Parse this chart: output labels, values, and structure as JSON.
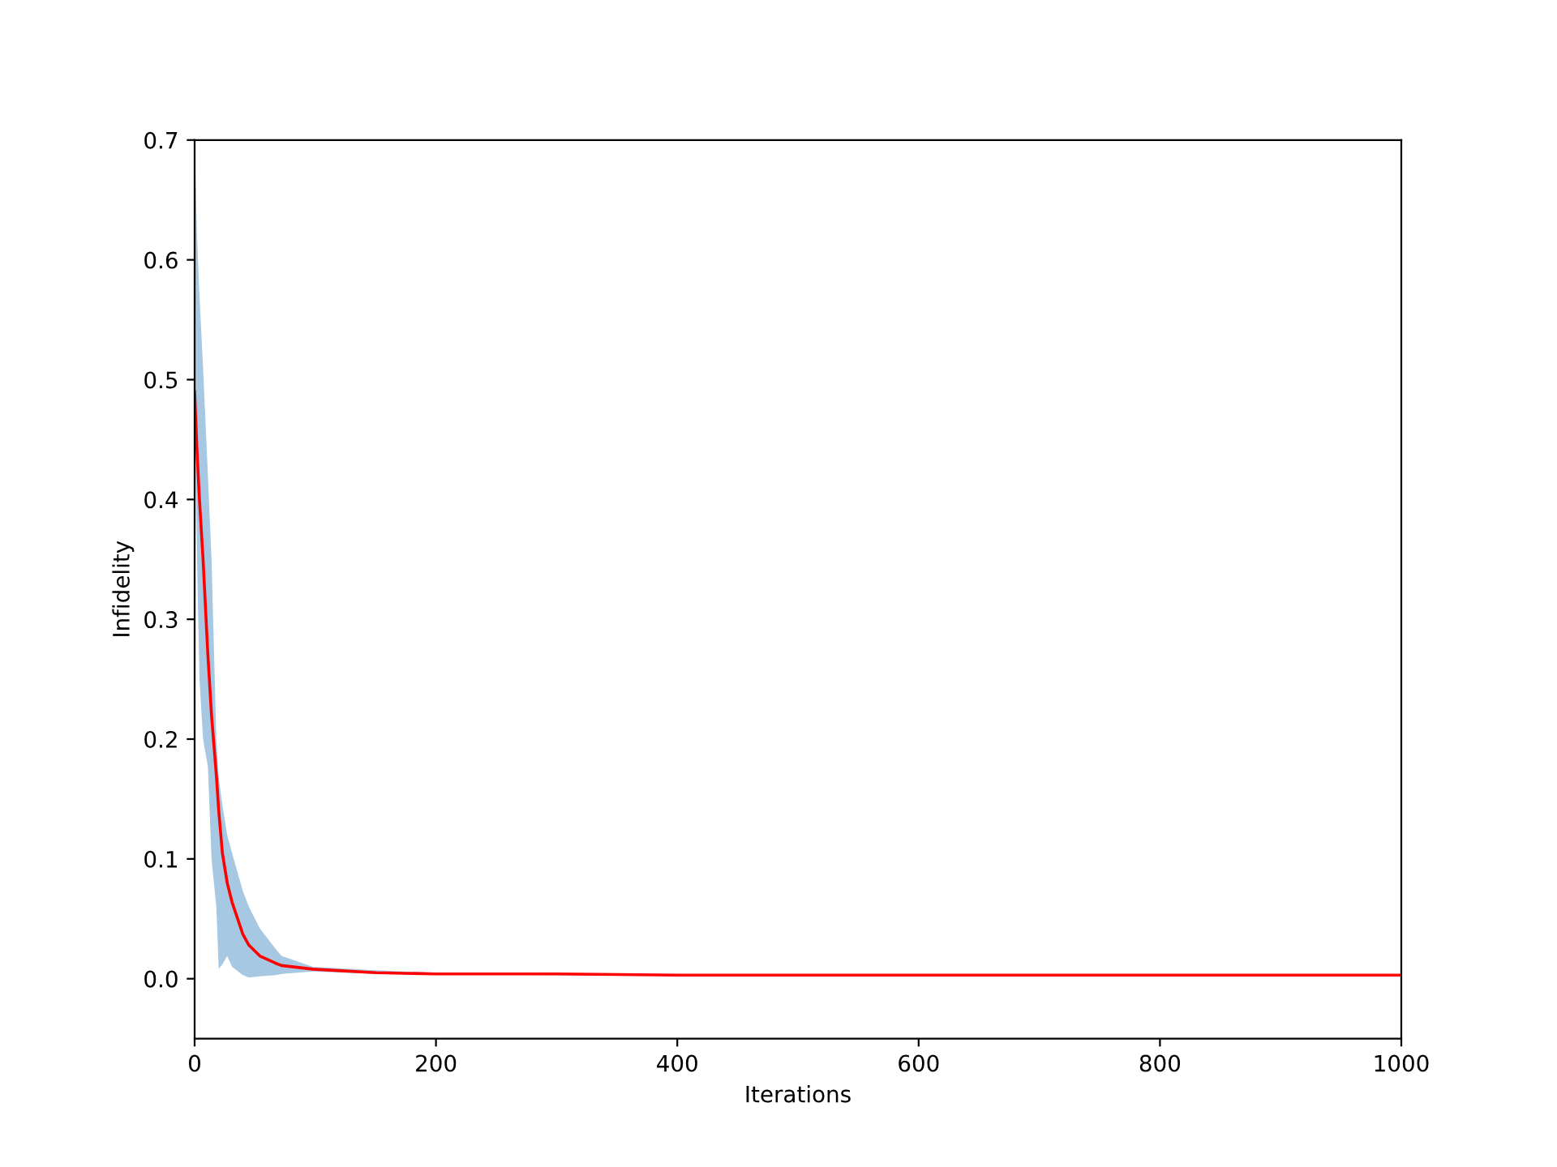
{
  "chart_data": {
    "type": "line",
    "xlabel": "Iterations",
    "ylabel": "Infidelity",
    "xlim": [
      0,
      1000
    ],
    "ylim": [
      -0.05,
      0.7
    ],
    "xticks": [
      0,
      200,
      400,
      600,
      800,
      1000
    ],
    "yticks": [
      {
        "value": 0,
        "label": "0.0"
      },
      0.1,
      0.2,
      0.3,
      0.4,
      0.5,
      0.6,
      0.7
    ],
    "grid": false,
    "legend": false,
    "marker": "none",
    "line_style": "solid",
    "series": [
      {
        "color": "#ff0000",
        "x": [
          0,
          2,
          4,
          7,
          11,
          14,
          18,
          20,
          23,
          27,
          31,
          40,
          45,
          54,
          67,
          72,
          98,
          150,
          200,
          300,
          400,
          500,
          600,
          700,
          800,
          900,
          1000
        ],
        "values": [
          0.49,
          0.44,
          0.4,
          0.35,
          0.27,
          0.22,
          0.17,
          0.14,
          0.105,
          0.08,
          0.064,
          0.037,
          0.028,
          0.019,
          0.013,
          0.011,
          0.008,
          0.005,
          0.004,
          0.004,
          0.003,
          0.003,
          0.003,
          0.003,
          0.003,
          0.003,
          0.003
        ],
        "lower": [
          0.49,
          0.35,
          0.25,
          0.2,
          0.177,
          0.1,
          0.06,
          0.008,
          0.012,
          0.019,
          0.01,
          0.003,
          0.001,
          0.002,
          0.003,
          0.004,
          0.006,
          0.004,
          0.0035,
          0.003,
          0.0027,
          0.0027,
          0.0027,
          0.0027,
          0.0027,
          0.0027,
          0.0027
        ],
        "upper": [
          0.7,
          0.62,
          0.57,
          0.51,
          0.42,
          0.35,
          0.2,
          0.168,
          0.145,
          0.12,
          0.105,
          0.073,
          0.06,
          0.042,
          0.025,
          0.019,
          0.01,
          0.007,
          0.005,
          0.004,
          0.0035,
          0.0033,
          0.0033,
          0.0033,
          0.0033,
          0.0033,
          0.0033
        ]
      }
    ]
  }
}
